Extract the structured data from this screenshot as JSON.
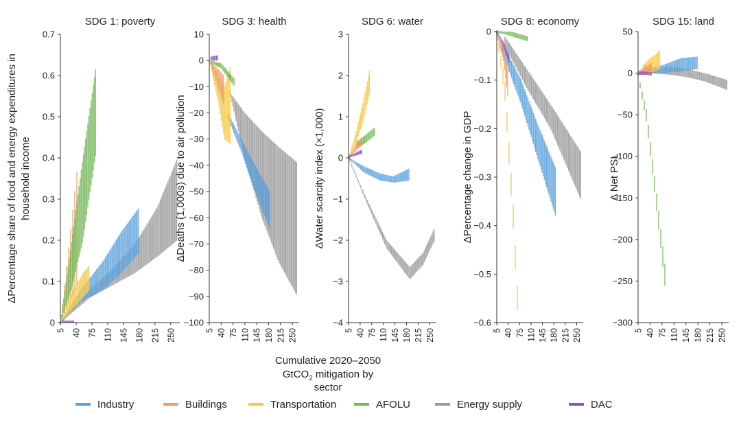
{
  "figure": {
    "xlabel_line1": "Cumulative 2020–2050",
    "xlabel_line2_pre": "GtCO",
    "xlabel_line2_sub": "2",
    "xlabel_line2_post": " mitigation by",
    "xlabel_line3": "sector"
  },
  "colors": {
    "Industry": "#5aa0dc",
    "Buildings": "#ee9c66",
    "Transportation": "#f6c843",
    "AFOLU": "#72b856",
    "Energy supply": "#9a9a9a",
    "DAC": "#8b4fbf"
  },
  "legend": [
    "Industry",
    "Buildings",
    "Transportation",
    "AFOLU",
    "Energy supply",
    "DAC"
  ],
  "chart_data": [
    {
      "type": "area",
      "title": "SDG 1: poverty",
      "ylabel_lines": [
        "ΔPercentage share of food and energy expenditures in",
        "household income"
      ],
      "xticks": [
        "5",
        "40",
        "75",
        "110",
        "145",
        "180",
        "215",
        "250"
      ],
      "xlim": [
        5,
        270
      ],
      "ylim": [
        0,
        0.7
      ],
      "yticks": [
        "0",
        "0.1",
        "0.2",
        "0.3",
        "0.4",
        "0.5",
        "0.6",
        "0.7"
      ],
      "series": [
        {
          "name": "Energy supply",
          "x": [
            5,
            70,
            120,
            170,
            220,
            265
          ],
          "y_low": [
            0,
            0.06,
            0.09,
            0.12,
            0.16,
            0.2
          ],
          "y_high": [
            0,
            0.08,
            0.13,
            0.19,
            0.28,
            0.4
          ]
        },
        {
          "name": "Industry",
          "x": [
            5,
            50,
            100,
            140,
            180
          ],
          "y_low": [
            0,
            0.05,
            0.08,
            0.12,
            0.17
          ],
          "y_high": [
            0,
            0.08,
            0.15,
            0.22,
            0.28
          ]
        },
        {
          "name": "Transportation",
          "x": [
            5,
            30,
            55,
            70
          ],
          "y_low": [
            0,
            0.03,
            0.06,
            0.08
          ],
          "y_high": [
            0,
            0.07,
            0.12,
            0.14
          ]
        },
        {
          "name": "Buildings",
          "x": [
            5,
            25,
            45
          ],
          "y_low": [
            0,
            0.05,
            0.1
          ],
          "y_high": [
            0,
            0.2,
            0.4
          ],
          "dashed": true
        },
        {
          "name": "AFOLU",
          "x": [
            5,
            30,
            55,
            85
          ],
          "y_low": [
            0,
            0.08,
            0.2,
            0.42
          ],
          "y_high": [
            0,
            0.2,
            0.4,
            0.63
          ]
        },
        {
          "name": "DAC",
          "x": [
            10,
            35
          ],
          "y_low": [
            0,
            0
          ],
          "y_high": [
            0.005,
            0.005
          ]
        }
      ]
    },
    {
      "type": "area",
      "title": "SDG 3: health",
      "ylabel_lines": [
        "ΔDeaths (1,000s) due to air pollution"
      ],
      "xticks": [
        "5",
        "40",
        "75",
        "110",
        "145",
        "180",
        "215",
        "250"
      ],
      "xlim": [
        5,
        270
      ],
      "ylim": [
        -100,
        10
      ],
      "yticks": [
        "10",
        "0",
        "−10",
        "−20",
        "−30",
        "−40",
        "−50",
        "−60",
        "−70",
        "−80",
        "−90",
        "−100"
      ],
      "series": [
        {
          "name": "Energy supply",
          "x": [
            65,
            110,
            160,
            210,
            265
          ],
          "y_low": [
            -12,
            -38,
            -60,
            -77,
            -90
          ],
          "y_high": [
            -12,
            -20,
            -27,
            -33,
            -39
          ]
        },
        {
          "name": "Industry",
          "x": [
            60,
            100,
            140,
            185
          ],
          "y_low": [
            -22,
            -35,
            -50,
            -65
          ],
          "y_high": [
            -20,
            -30,
            -40,
            -50
          ]
        },
        {
          "name": "Transportation",
          "x": [
            5,
            30,
            50,
            68
          ],
          "y_low": [
            0,
            -15,
            -30,
            -32
          ],
          "y_high": [
            0,
            -5,
            -10,
            -2
          ]
        },
        {
          "name": "Buildings",
          "x": [
            5,
            30,
            50
          ],
          "y_low": [
            0,
            -10,
            -18
          ],
          "y_high": [
            0,
            -3,
            -6
          ]
        },
        {
          "name": "AFOLU",
          "x": [
            10,
            40,
            80
          ],
          "y_low": [
            -1,
            -3,
            -10
          ],
          "y_high": [
            0,
            -1,
            -7
          ]
        },
        {
          "name": "DAC",
          "x": [
            10,
            30
          ],
          "y_low": [
            0,
            0
          ],
          "y_high": [
            1.5,
            2
          ]
        }
      ]
    },
    {
      "type": "area",
      "title": "SDG 6: water",
      "ylabel_lines": [
        "ΔWater scarcity index (×1,000)"
      ],
      "xticks": [
        "5",
        "40",
        "75",
        "110",
        "145",
        "180",
        "215",
        "250"
      ],
      "xlim": [
        5,
        270
      ],
      "ylim": [
        -4,
        3
      ],
      "yticks": [
        "3",
        "2",
        "1",
        "0",
        "−1",
        "−2",
        "−3",
        "−4"
      ],
      "series": [
        {
          "name": "Energy supply",
          "x": [
            5,
            60,
            120,
            190,
            230,
            265
          ],
          "y_low": [
            0,
            -1.1,
            -2.2,
            -2.95,
            -2.6,
            -2.0
          ],
          "y_high": [
            0,
            -1.0,
            -2.0,
            -2.65,
            -2.3,
            -1.7
          ]
        },
        {
          "name": "Industry",
          "x": [
            5,
            50,
            100,
            140,
            190
          ],
          "y_low": [
            0,
            -0.35,
            -0.55,
            -0.6,
            -0.55
          ],
          "y_high": [
            0,
            -0.2,
            -0.38,
            -0.45,
            -0.25
          ]
        },
        {
          "name": "Transportation",
          "x": [
            5,
            30,
            50,
            70
          ],
          "y_low": [
            0,
            0.4,
            0.9,
            1.6
          ],
          "y_high": [
            0,
            0.7,
            1.4,
            2.2
          ]
        },
        {
          "name": "AFOLU",
          "x": [
            30,
            55,
            85
          ],
          "y_low": [
            0.25,
            0.35,
            0.55
          ],
          "y_high": [
            0.4,
            0.55,
            0.75
          ]
        },
        {
          "name": "Buildings",
          "x": [
            5,
            25,
            45
          ],
          "y_low": [
            0,
            0.15,
            0.3
          ],
          "y_high": [
            0,
            0.3,
            0.5
          ]
        },
        {
          "name": "DAC",
          "x": [
            5,
            25,
            45
          ],
          "y_low": [
            0,
            0.05,
            0.1
          ],
          "y_high": [
            0.05,
            0.12,
            0.2
          ]
        }
      ]
    },
    {
      "type": "area",
      "title": "SDG 8: economy",
      "ylabel_lines": [
        "ΔPercentage change in GDP"
      ],
      "xticks": [
        "5",
        "40",
        "75",
        "110",
        "145",
        "180",
        "215",
        "250"
      ],
      "xlim": [
        5,
        270
      ],
      "ylim": [
        -0.6,
        0
      ],
      "yticks": [
        "0",
        "−0.1",
        "−0.2",
        "−0.3",
        "−0.4",
        "−0.5",
        "−0.6"
      ],
      "series": [
        {
          "name": "Energy supply",
          "x": [
            30,
            100,
            170,
            265
          ],
          "y_low": [
            -0.03,
            -0.12,
            -0.2,
            -0.35
          ],
          "y_high": [
            -0.01,
            -0.08,
            -0.15,
            -0.25
          ]
        },
        {
          "name": "Industry",
          "x": [
            20,
            80,
            130,
            185
          ],
          "y_low": [
            -0.04,
            -0.15,
            -0.26,
            -0.38
          ],
          "y_high": [
            -0.02,
            -0.1,
            -0.19,
            -0.28
          ]
        },
        {
          "name": "Transportation",
          "x": [
            5,
            30,
            55,
            70
          ],
          "y_low": [
            -0.01,
            -0.14,
            -0.4,
            -0.6
          ],
          "y_high": [
            0,
            -0.1,
            -0.35,
            -0.55
          ],
          "dashed": true
        },
        {
          "name": "AFOLU",
          "x": [
            5,
            50,
            100
          ],
          "y_low": [
            0,
            -0.01,
            -0.02
          ],
          "y_high": [
            0,
            0.0,
            -0.01
          ]
        },
        {
          "name": "Buildings",
          "x": [
            5,
            25,
            40
          ],
          "y_low": [
            -0.01,
            -0.06,
            -0.14
          ],
          "y_high": [
            0,
            -0.03,
            -0.08
          ]
        },
        {
          "name": "DAC",
          "x": [
            5,
            25,
            45
          ],
          "y_low": [
            0,
            -0.03,
            -0.07
          ],
          "y_high": [
            0,
            -0.02,
            -0.05
          ]
        }
      ]
    },
    {
      "type": "area",
      "title": "SDG 15: land",
      "ylabel_lines": [
        "Δ Net PSL"
      ],
      "xticks": [
        "5",
        "40",
        "75",
        "110",
        "145",
        "180",
        "215",
        "250"
      ],
      "xlim": [
        5,
        270
      ],
      "ylim": [
        -300,
        50
      ],
      "yticks": [
        "50",
        "0",
        "−50",
        "−100",
        "−150",
        "−200",
        "−250",
        "−300"
      ],
      "series": [
        {
          "name": "Energy supply",
          "x": [
            40,
            100,
            150,
            200,
            265
          ],
          "y_low": [
            0,
            -2,
            -5,
            -10,
            -20
          ],
          "y_high": [
            5,
            8,
            5,
            0,
            -8
          ]
        },
        {
          "name": "Industry",
          "x": [
            30,
            80,
            130,
            180
          ],
          "y_low": [
            0,
            0,
            2,
            5
          ],
          "y_high": [
            5,
            10,
            18,
            20
          ]
        },
        {
          "name": "Transportation",
          "x": [
            20,
            40,
            55,
            70
          ],
          "y_low": [
            -2,
            0,
            2,
            5
          ],
          "y_high": [
            10,
            18,
            22,
            28
          ]
        },
        {
          "name": "AFOLU",
          "x": [
            5,
            30,
            55,
            85
          ],
          "y_low": [
            -5,
            -60,
            -150,
            -262
          ],
          "y_high": [
            0,
            -45,
            -130,
            -235
          ],
          "dashed": true
        },
        {
          "name": "Buildings",
          "x": [
            5,
            25,
            45
          ],
          "y_low": [
            -2,
            0,
            2
          ],
          "y_high": [
            2,
            8,
            12
          ]
        },
        {
          "name": "DAC",
          "x": [
            5,
            25,
            45
          ],
          "y_low": [
            -2,
            -2,
            -3
          ],
          "y_high": [
            2,
            2,
            1
          ]
        }
      ]
    }
  ]
}
